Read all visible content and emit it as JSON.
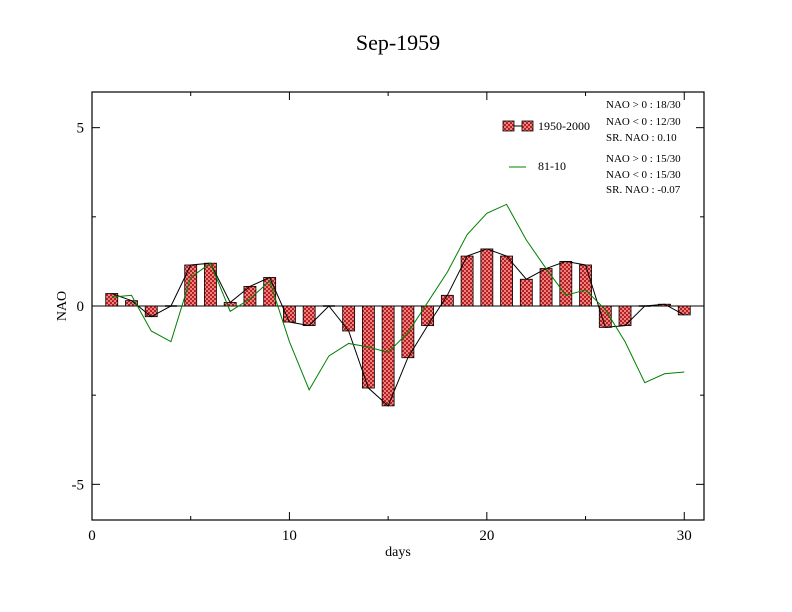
{
  "chart_data": {
    "type": "bar",
    "title": "Sep-1959",
    "xlabel": "days",
    "ylabel": "NAO",
    "xlim": [
      0,
      31
    ],
    "ylim": [
      -6,
      6
    ],
    "x_ticks": [
      0,
      10,
      20,
      30
    ],
    "y_ticks": [
      -5,
      0,
      5
    ],
    "x_tick_labels": [
      "0",
      "10",
      "20",
      "30"
    ],
    "y_tick_labels": [
      "-5",
      "0",
      "5"
    ],
    "x": [
      1,
      2,
      3,
      4,
      5,
      6,
      7,
      8,
      9,
      10,
      11,
      12,
      13,
      14,
      15,
      16,
      17,
      18,
      19,
      20,
      21,
      22,
      23,
      24,
      25,
      26,
      27,
      28,
      29,
      30
    ],
    "series": [
      {
        "name": "1950-2000",
        "style": "bars with connecting line",
        "values": [
          0.35,
          0.15,
          -0.3,
          0.0,
          1.15,
          1.2,
          0.1,
          0.55,
          0.8,
          -0.45,
          -0.55,
          0.0,
          -0.7,
          -2.3,
          -2.8,
          -1.45,
          -0.55,
          0.3,
          1.4,
          1.6,
          1.4,
          0.75,
          1.05,
          1.25,
          1.15,
          -0.6,
          -0.55,
          0.0,
          0.05,
          -0.25
        ]
      },
      {
        "name": "81-10",
        "style": "line",
        "color": "#008000",
        "values": [
          0.25,
          0.3,
          -0.7,
          -1.0,
          0.8,
          1.2,
          -0.15,
          0.2,
          0.7,
          -1.0,
          -2.35,
          -1.4,
          -1.05,
          -1.15,
          -1.3,
          -0.75,
          0.1,
          0.95,
          2.0,
          2.6,
          2.85,
          1.85,
          1.05,
          0.3,
          0.45,
          -0.1,
          -1.0,
          -2.15,
          -1.9,
          -1.85
        ]
      }
    ],
    "stats": [
      [
        "NAO > 0 :  18/30",
        "NAO < 0 :  12/30",
        "SR. NAO :  0.10"
      ],
      [
        "NAO > 0 :  15/30",
        "NAO < 0 :  15/30",
        "SR. NAO : -0.07"
      ]
    ],
    "legend_placement": "top-right",
    "grid": false,
    "colors": {
      "bar_fill": "#e87070",
      "bar_pattern": "#8b0000",
      "bar_line": "#000000",
      "line_81_10": "#008000",
      "zero_line": "#000000"
    }
  }
}
